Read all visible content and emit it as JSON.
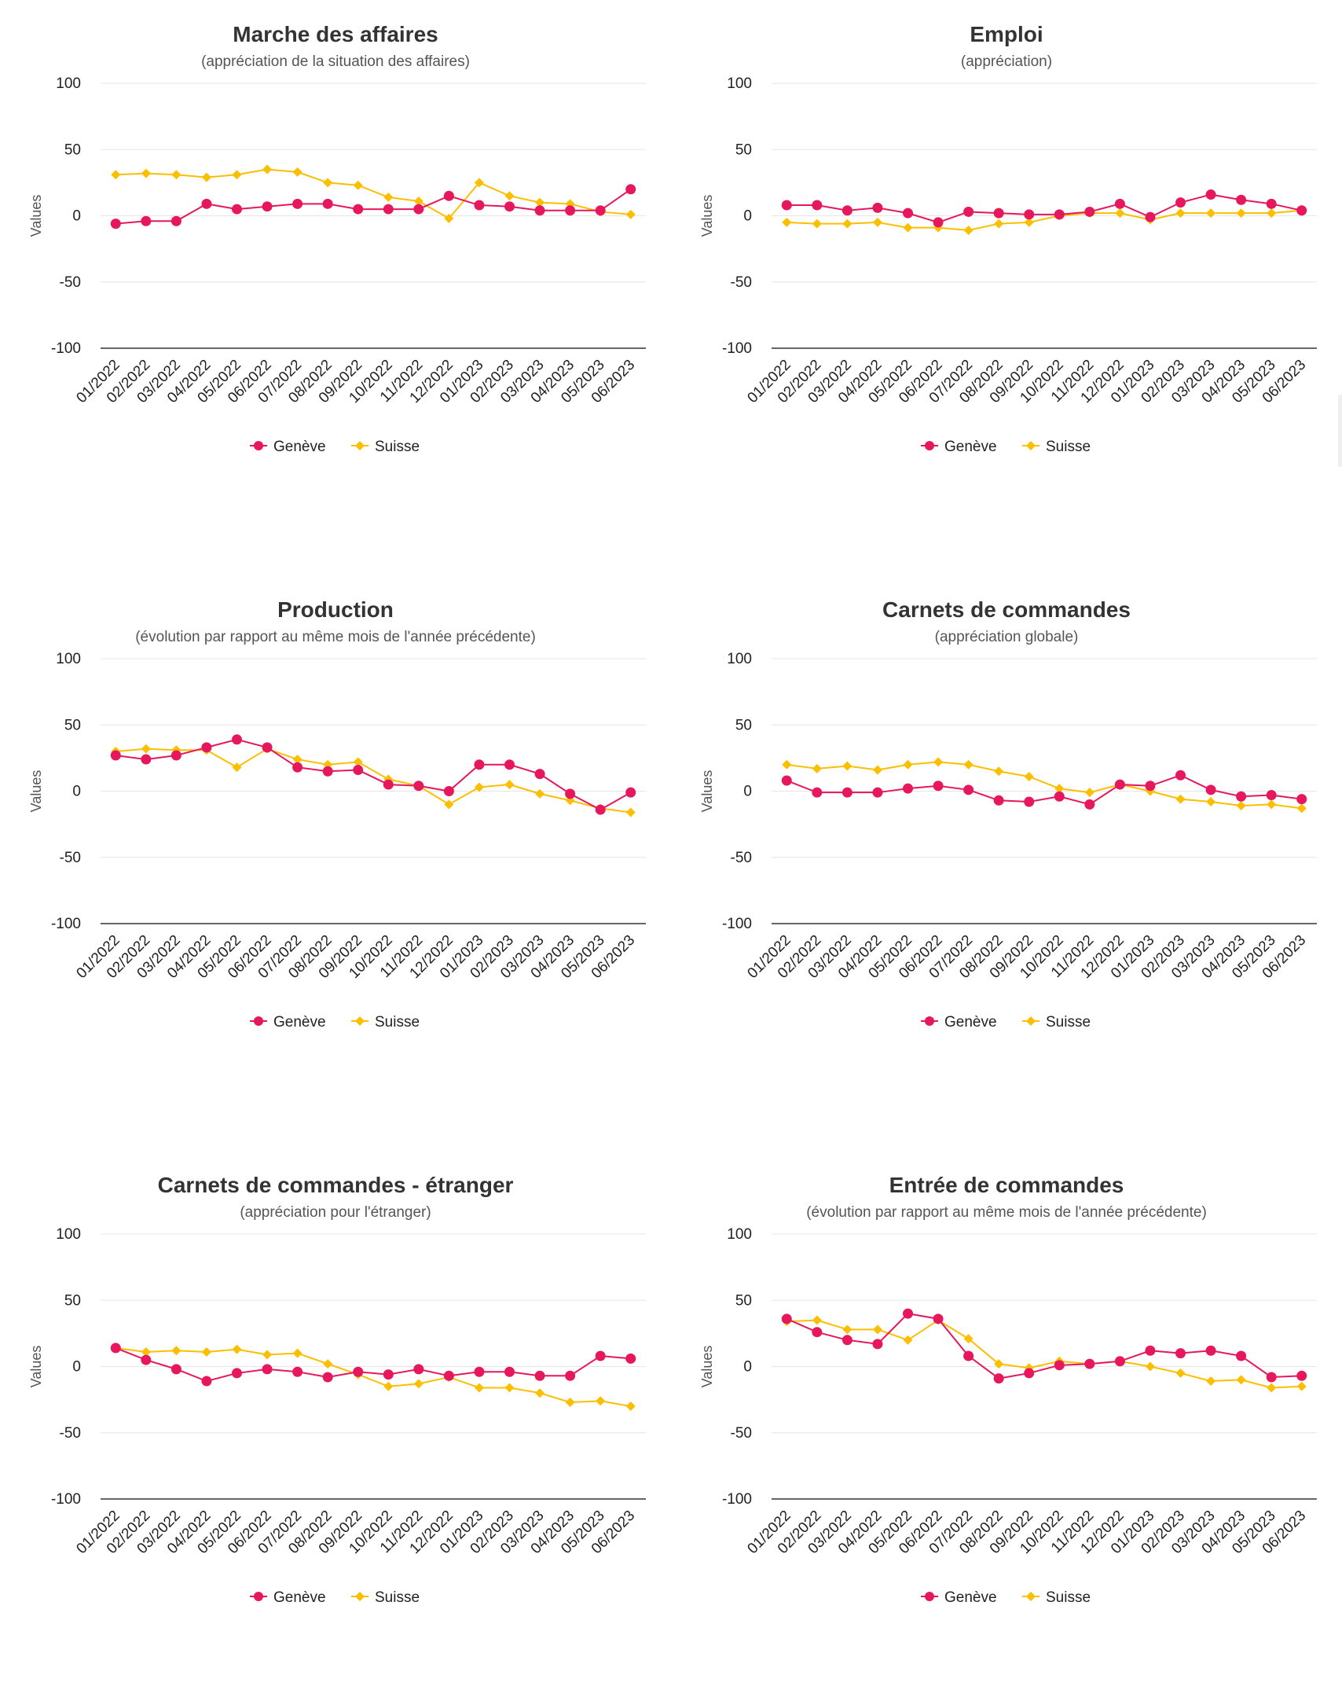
{
  "colors": {
    "geneve": "#e6175d",
    "suisse": "#fcbf00"
  },
  "legend": {
    "geneve": "Genève",
    "suisse": "Suisse"
  },
  "chart_data": [
    {
      "type": "line",
      "title": "Marche des affaires",
      "subtitle": "(appréciation de la situation des affaires)",
      "ylabel": "Values",
      "ylim": [
        -100,
        100
      ],
      "yticks": [
        "100",
        "50",
        "0",
        "-50",
        "-100"
      ],
      "categories": [
        "01/2022",
        "02/2022",
        "03/2022",
        "04/2022",
        "05/2022",
        "06/2022",
        "07/2022",
        "08/2022",
        "09/2022",
        "10/2022",
        "11/2022",
        "12/2022",
        "01/2023",
        "02/2023",
        "03/2023",
        "04/2023",
        "05/2023",
        "06/2023"
      ],
      "series": [
        {
          "name": "Genève",
          "values": [
            -6,
            -4,
            -4,
            9,
            5,
            7,
            9,
            9,
            5,
            5,
            5,
            15,
            8,
            7,
            4,
            4,
            4,
            20
          ]
        },
        {
          "name": "Suisse",
          "values": [
            31,
            32,
            31,
            29,
            31,
            35,
            33,
            25,
            23,
            14,
            11,
            -2,
            25,
            15,
            10,
            9,
            3,
            1
          ]
        }
      ]
    },
    {
      "type": "line",
      "title": "Emploi",
      "subtitle": "(appréciation)",
      "ylabel": "Values",
      "ylim": [
        -100,
        100
      ],
      "yticks": [
        "100",
        "50",
        "0",
        "-50",
        "-100"
      ],
      "categories": [
        "01/2022",
        "02/2022",
        "03/2022",
        "04/2022",
        "05/2022",
        "06/2022",
        "07/2022",
        "08/2022",
        "09/2022",
        "10/2022",
        "11/2022",
        "12/2022",
        "01/2023",
        "02/2023",
        "03/2023",
        "04/2023",
        "05/2023",
        "06/2023"
      ],
      "series": [
        {
          "name": "Genève",
          "values": [
            8,
            8,
            4,
            6,
            2,
            -5,
            3,
            2,
            1,
            1,
            3,
            9,
            -1,
            10,
            16,
            12,
            9,
            4
          ]
        },
        {
          "name": "Suisse",
          "values": [
            -5,
            -6,
            -6,
            -5,
            -9,
            -9,
            -11,
            -6,
            -5,
            0,
            2,
            2,
            -3,
            2,
            2,
            2,
            2,
            4
          ]
        }
      ]
    },
    {
      "type": "line",
      "title": "Production",
      "subtitle": "(évolution par rapport au même mois de l'année précédente)",
      "ylabel": "Values",
      "ylim": [
        -100,
        100
      ],
      "yticks": [
        "100",
        "50",
        "0",
        "-50",
        "-100"
      ],
      "categories": [
        "01/2022",
        "02/2022",
        "03/2022",
        "04/2022",
        "05/2022",
        "06/2022",
        "07/2022",
        "08/2022",
        "09/2022",
        "10/2022",
        "11/2022",
        "12/2022",
        "01/2023",
        "02/2023",
        "03/2023",
        "04/2023",
        "05/2023",
        "06/2023"
      ],
      "series": [
        {
          "name": "Genève",
          "values": [
            27,
            24,
            27,
            33,
            39,
            33,
            18,
            15,
            16,
            5,
            4,
            0,
            20,
            20,
            13,
            -2,
            -14,
            -1
          ]
        },
        {
          "name": "Suisse",
          "values": [
            30,
            32,
            31,
            31,
            18,
            32,
            24,
            20,
            22,
            9,
            4,
            -10,
            3,
            5,
            -2,
            -7,
            -13,
            -16
          ]
        }
      ]
    },
    {
      "type": "line",
      "title": "Carnets de commandes",
      "subtitle": "(appréciation globale)",
      "ylabel": "Values",
      "ylim": [
        -100,
        100
      ],
      "yticks": [
        "100",
        "50",
        "0",
        "-50",
        "-100"
      ],
      "categories": [
        "01/2022",
        "02/2022",
        "03/2022",
        "04/2022",
        "05/2022",
        "06/2022",
        "07/2022",
        "08/2022",
        "09/2022",
        "10/2022",
        "11/2022",
        "12/2022",
        "01/2023",
        "02/2023",
        "03/2023",
        "04/2023",
        "05/2023",
        "06/2023"
      ],
      "series": [
        {
          "name": "Genève",
          "values": [
            8,
            -1,
            -1,
            -1,
            2,
            4,
            1,
            -7,
            -8,
            -4,
            -10,
            5,
            4,
            12,
            1,
            -4,
            -3,
            -6
          ]
        },
        {
          "name": "Suisse",
          "values": [
            20,
            17,
            19,
            16,
            20,
            22,
            20,
            15,
            11,
            2,
            -1,
            5,
            0,
            -6,
            -8,
            -11,
            -10,
            -13
          ]
        }
      ]
    },
    {
      "type": "line",
      "title": "Carnets de commandes - étranger",
      "subtitle": "(appréciation pour l'étranger)",
      "ylabel": "Values",
      "ylim": [
        -100,
        100
      ],
      "yticks": [
        "100",
        "50",
        "0",
        "-50",
        "-100"
      ],
      "categories": [
        "01/2022",
        "02/2022",
        "03/2022",
        "04/2022",
        "05/2022",
        "06/2022",
        "07/2022",
        "08/2022",
        "09/2022",
        "10/2022",
        "11/2022",
        "12/2022",
        "01/2023",
        "02/2023",
        "03/2023",
        "04/2023",
        "05/2023",
        "06/2023"
      ],
      "series": [
        {
          "name": "Genève",
          "values": [
            14,
            5,
            -2,
            -11,
            -5,
            -2,
            -4,
            -8,
            -4,
            -6,
            -2,
            -7,
            -4,
            -4,
            -7,
            -7,
            8,
            6
          ]
        },
        {
          "name": "Suisse",
          "values": [
            14,
            11,
            12,
            11,
            13,
            9,
            10,
            2,
            -6,
            -15,
            -13,
            -8,
            -16,
            -16,
            -20,
            -27,
            -26,
            -30
          ]
        }
      ]
    },
    {
      "type": "line",
      "title": "Entrée de commandes",
      "subtitle": "(évolution par rapport au même mois de l'année précédente)",
      "ylabel": "Values",
      "ylim": [
        -100,
        100
      ],
      "yticks": [
        "100",
        "50",
        "0",
        "-50",
        "-100"
      ],
      "categories": [
        "01/2022",
        "02/2022",
        "03/2022",
        "04/2022",
        "05/2022",
        "06/2022",
        "07/2022",
        "08/2022",
        "09/2022",
        "10/2022",
        "11/2022",
        "12/2022",
        "01/2023",
        "02/2023",
        "03/2023",
        "04/2023",
        "05/2023",
        "06/2023"
      ],
      "series": [
        {
          "name": "Genève",
          "values": [
            36,
            26,
            20,
            17,
            40,
            36,
            8,
            -9,
            -5,
            1,
            2,
            4,
            12,
            10,
            12,
            8,
            -8,
            -7
          ]
        },
        {
          "name": "Suisse",
          "values": [
            34,
            35,
            28,
            28,
            20,
            35,
            21,
            2,
            -1,
            4,
            2,
            4,
            0,
            -5,
            -11,
            -10,
            -16,
            -15
          ]
        }
      ]
    }
  ]
}
